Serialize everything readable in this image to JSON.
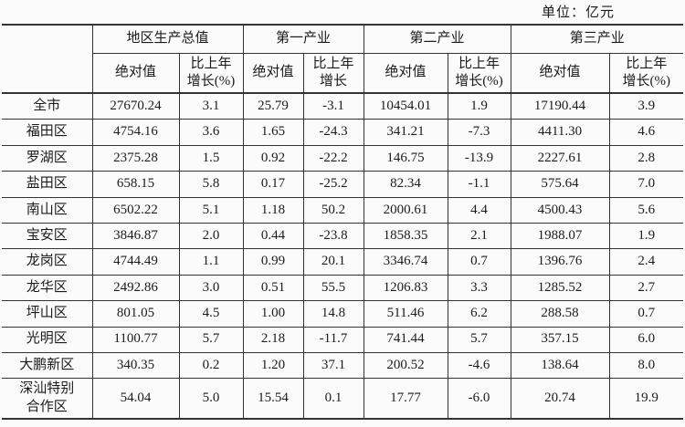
{
  "unit_label": "单位：亿元",
  "colors": {
    "background": "#fbfbfb",
    "text": "#1b1b1b",
    "border": "#333333"
  },
  "table": {
    "col_groups": [
      {
        "label": "地区生产总值",
        "sub": [
          "绝对值",
          "比上年\n增长(%)"
        ]
      },
      {
        "label": "第一产业",
        "sub": [
          "绝对值",
          "比上年\n增长"
        ]
      },
      {
        "label": "第二产业",
        "sub": [
          "绝对值",
          "比上年\n增长(%)"
        ]
      },
      {
        "label": "第三产业",
        "sub": [
          "绝对值",
          "比上年\n增长(%)"
        ]
      }
    ],
    "rows": [
      {
        "region": "全市",
        "values": [
          "27670.24",
          "3.1",
          "25.79",
          "-3.1",
          "10454.01",
          "1.9",
          "17190.44",
          "3.9"
        ]
      },
      {
        "region": "福田区",
        "values": [
          "4754.16",
          "3.6",
          "1.65",
          "-24.3",
          "341.21",
          "-7.3",
          "4411.30",
          "4.6"
        ]
      },
      {
        "region": "罗湖区",
        "values": [
          "2375.28",
          "1.5",
          "0.92",
          "-22.2",
          "146.75",
          "-13.9",
          "2227.61",
          "2.8"
        ]
      },
      {
        "region": "盐田区",
        "values": [
          "658.15",
          "5.8",
          "0.17",
          "-25.2",
          "82.34",
          "-1.1",
          "575.64",
          "7.0"
        ]
      },
      {
        "region": "南山区",
        "values": [
          "6502.22",
          "5.1",
          "1.18",
          "50.2",
          "2000.61",
          "4.4",
          "4500.43",
          "5.6"
        ]
      },
      {
        "region": "宝安区",
        "values": [
          "3846.87",
          "2.0",
          "0.44",
          "-23.8",
          "1858.35",
          "2.1",
          "1988.07",
          "1.9"
        ]
      },
      {
        "region": "龙岗区",
        "values": [
          "4744.49",
          "1.1",
          "0.99",
          "20.1",
          "3346.74",
          "0.7",
          "1396.76",
          "2.4"
        ]
      },
      {
        "region": "龙华区",
        "values": [
          "2492.86",
          "3.0",
          "0.51",
          "55.5",
          "1206.83",
          "3.3",
          "1285.52",
          "2.7"
        ]
      },
      {
        "region": "坪山区",
        "values": [
          "801.05",
          "4.5",
          "1.00",
          "14.8",
          "511.46",
          "6.2",
          "288.58",
          "0.7"
        ]
      },
      {
        "region": "光明区",
        "values": [
          "1100.77",
          "5.7",
          "2.18",
          "-11.7",
          "741.44",
          "5.7",
          "357.15",
          "6.0"
        ]
      },
      {
        "region": "大鹏新区",
        "values": [
          "340.35",
          "0.2",
          "1.20",
          "37.1",
          "200.52",
          "-4.6",
          "138.64",
          "8.0"
        ]
      },
      {
        "region": "深汕特别\n合作区",
        "values": [
          "54.04",
          "5.0",
          "15.54",
          "0.1",
          "17.77",
          "-6.0",
          "20.74",
          "19.9"
        ]
      }
    ]
  },
  "chart_data": {
    "type": "table",
    "unit": "亿元",
    "columns": [
      "地区",
      "地区生产总值-绝对值",
      "地区生产总值-比上年增长(%)",
      "第一产业-绝对值",
      "第一产业-比上年增长",
      "第二产业-绝对值",
      "第二产业-比上年增长(%)",
      "第三产业-绝对值",
      "第三产业-比上年增长(%)"
    ],
    "rows": [
      [
        "全市",
        27670.24,
        3.1,
        25.79,
        -3.1,
        10454.01,
        1.9,
        17190.44,
        3.9
      ],
      [
        "福田区",
        4754.16,
        3.6,
        1.65,
        -24.3,
        341.21,
        -7.3,
        4411.3,
        4.6
      ],
      [
        "罗湖区",
        2375.28,
        1.5,
        0.92,
        -22.2,
        146.75,
        -13.9,
        2227.61,
        2.8
      ],
      [
        "盐田区",
        658.15,
        5.8,
        0.17,
        -25.2,
        82.34,
        -1.1,
        575.64,
        7.0
      ],
      [
        "南山区",
        6502.22,
        5.1,
        1.18,
        50.2,
        2000.61,
        4.4,
        4500.43,
        5.6
      ],
      [
        "宝安区",
        3846.87,
        2.0,
        0.44,
        -23.8,
        1858.35,
        2.1,
        1988.07,
        1.9
      ],
      [
        "龙岗区",
        4744.49,
        1.1,
        0.99,
        20.1,
        3346.74,
        0.7,
        1396.76,
        2.4
      ],
      [
        "龙华区",
        2492.86,
        3.0,
        0.51,
        55.5,
        1206.83,
        3.3,
        1285.52,
        2.7
      ],
      [
        "坪山区",
        801.05,
        4.5,
        1.0,
        14.8,
        511.46,
        6.2,
        288.58,
        0.7
      ],
      [
        "光明区",
        1100.77,
        5.7,
        2.18,
        -11.7,
        741.44,
        5.7,
        357.15,
        6.0
      ],
      [
        "大鹏新区",
        340.35,
        0.2,
        1.2,
        37.1,
        200.52,
        -4.6,
        138.64,
        8.0
      ],
      [
        "深汕特别合作区",
        54.04,
        5.0,
        15.54,
        0.1,
        17.77,
        -6.0,
        20.74,
        19.9
      ]
    ]
  }
}
